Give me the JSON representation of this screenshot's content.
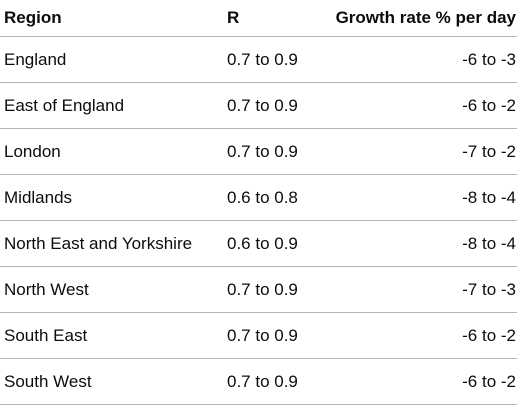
{
  "table": {
    "headers": {
      "region": "Region",
      "r": "R",
      "growth": "Growth rate % per day"
    },
    "rows": [
      {
        "region": "England",
        "r": "0.7 to 0.9",
        "growth": "-6 to -3"
      },
      {
        "region": "East of England",
        "r": "0.7 to 0.9",
        "growth": "-6 to -2"
      },
      {
        "region": "London",
        "r": "0.7 to 0.9",
        "growth": "-7 to -2"
      },
      {
        "region": "Midlands",
        "r": "0.6 to 0.8",
        "growth": "-8 to -4"
      },
      {
        "region": "North East and Yorkshire",
        "r": "0.6 to 0.9",
        "growth": "-8 to -4"
      },
      {
        "region": "North West",
        "r": "0.7 to 0.9",
        "growth": "-7 to -3"
      },
      {
        "region": "South East",
        "r": "0.7 to 0.9",
        "growth": "-6 to -2"
      },
      {
        "region": "South West",
        "r": "0.7 to 0.9",
        "growth": "-6 to -2"
      }
    ]
  }
}
